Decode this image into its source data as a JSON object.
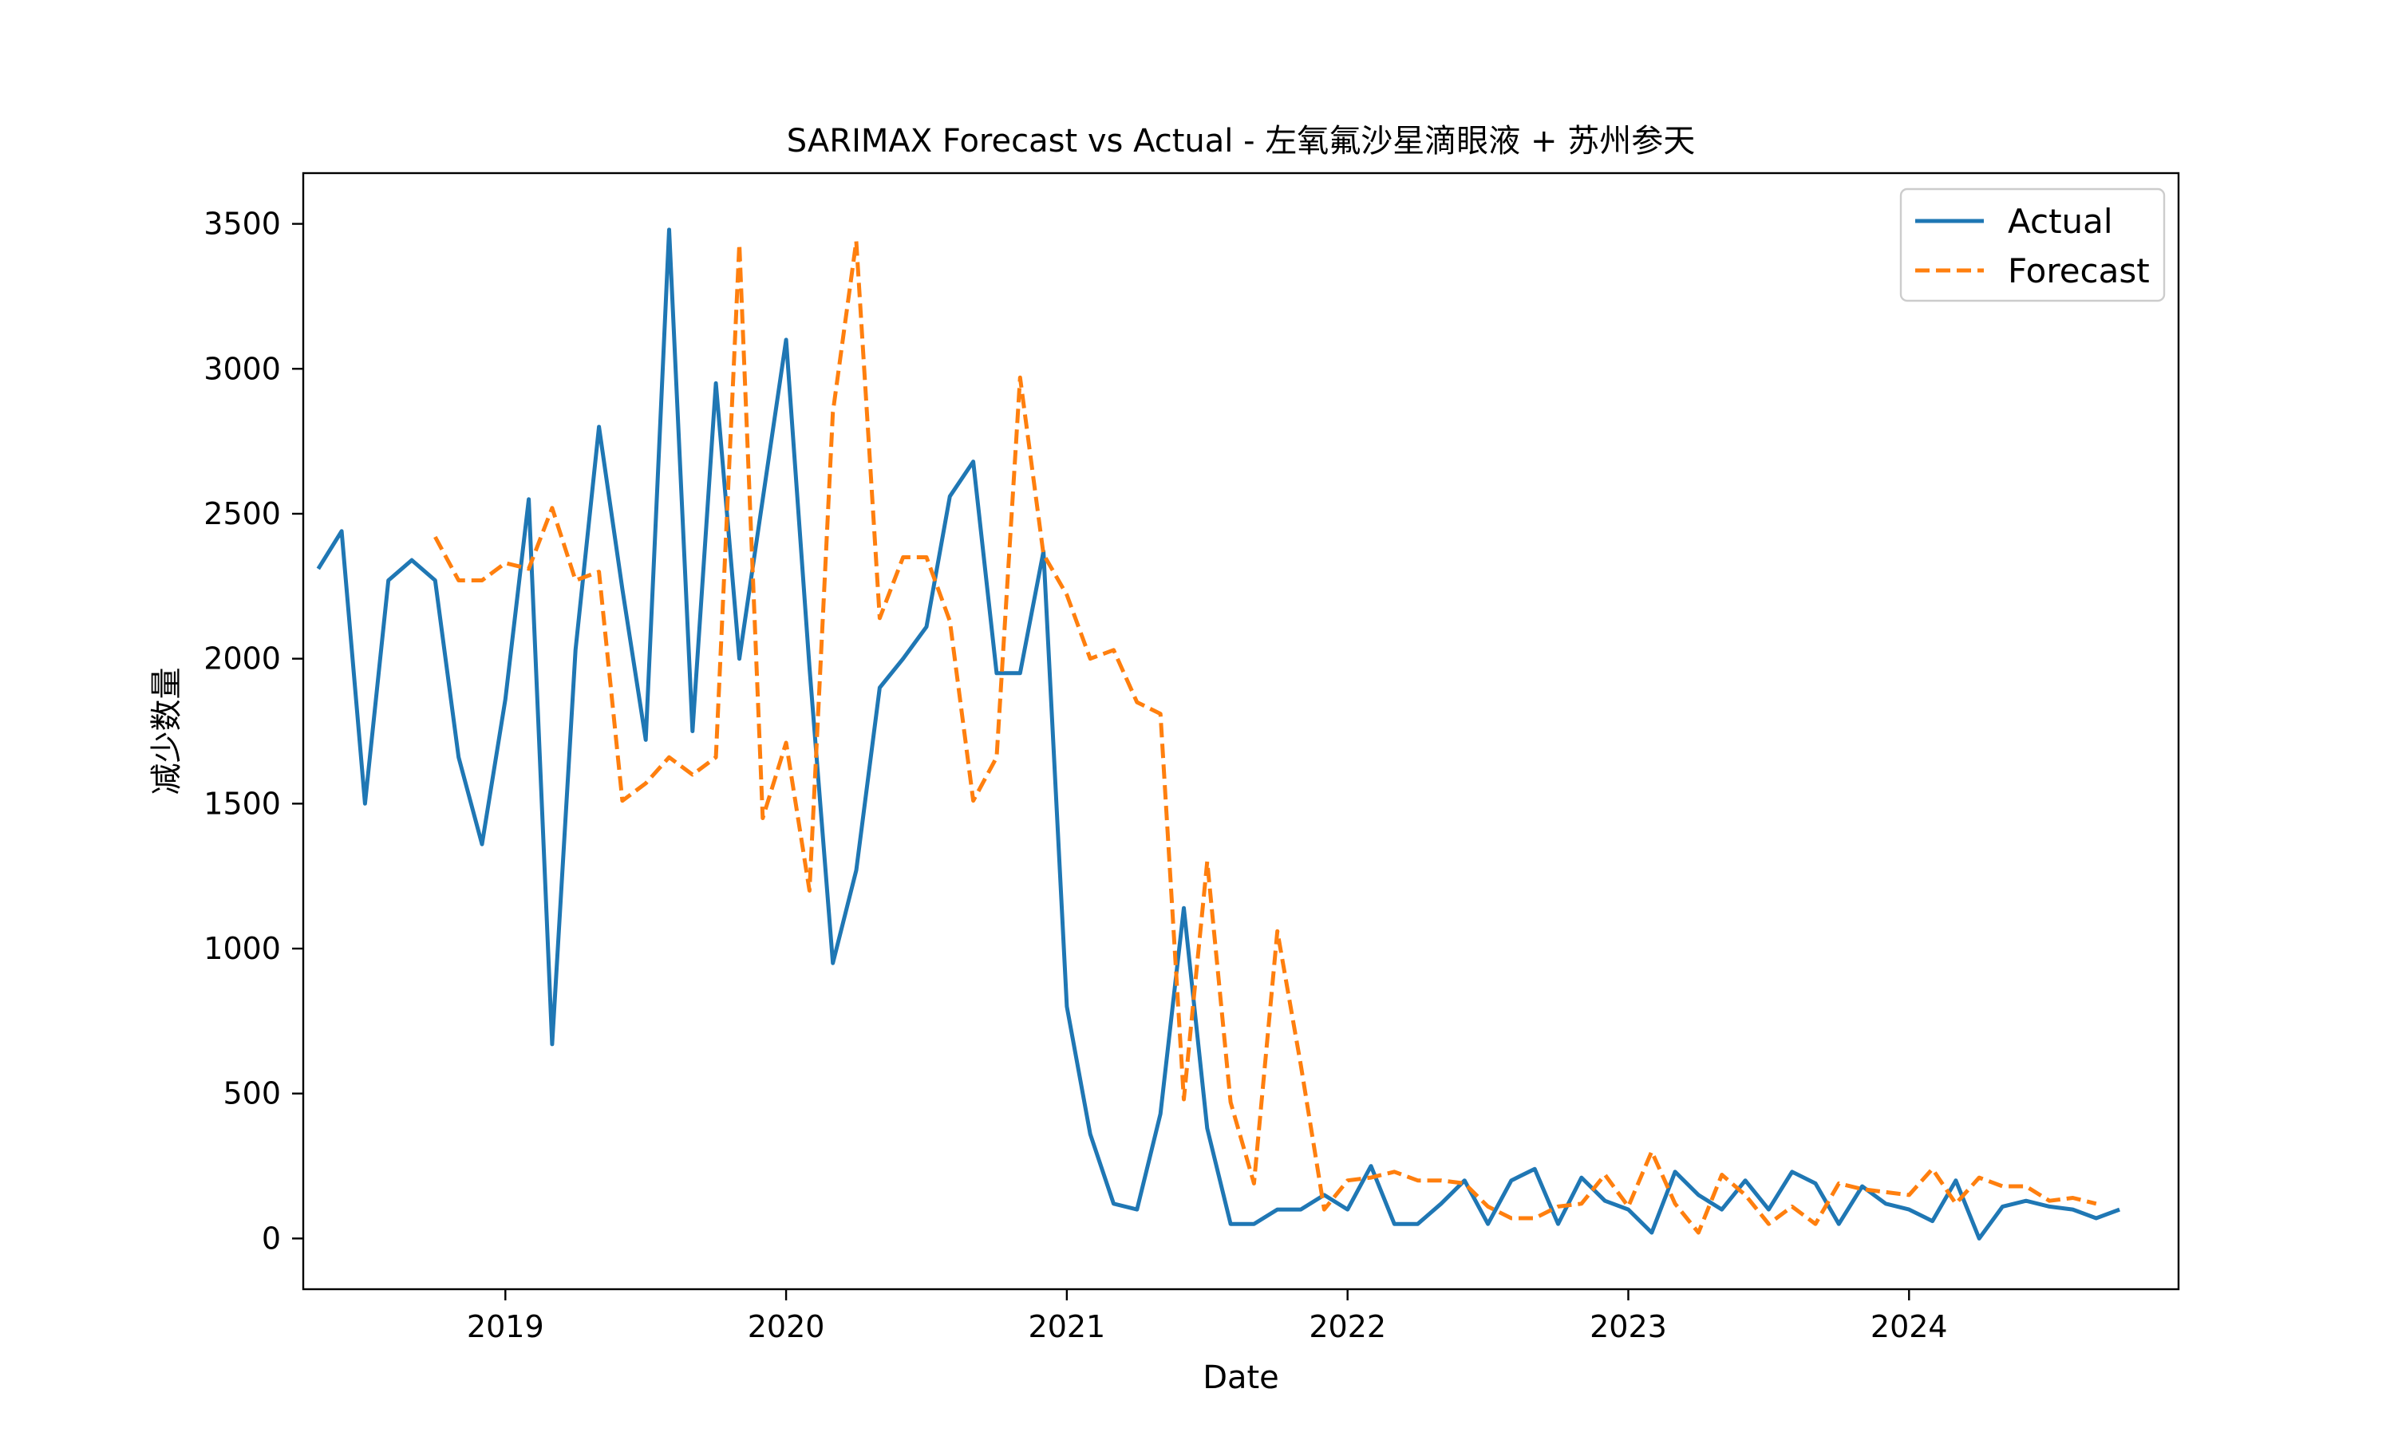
{
  "chart_data": {
    "type": "line",
    "title": "SARIMAX Forecast vs Actual - 左氧氟沙星滴眼液 + 苏州参天",
    "xlabel": "Date",
    "ylabel": "减少数量",
    "xlim": [
      2018.28,
      2024.96
    ],
    "ylim": [
      -175,
      3675
    ],
    "x_ticks": [
      {
        "value": 2019,
        "label": "2019"
      },
      {
        "value": 2020,
        "label": "2020"
      },
      {
        "value": 2021,
        "label": "2021"
      },
      {
        "value": 2022,
        "label": "2022"
      },
      {
        "value": 2023,
        "label": "2023"
      },
      {
        "value": 2024,
        "label": "2024"
      }
    ],
    "y_ticks": [
      {
        "value": 0,
        "label": "0"
      },
      {
        "value": 500,
        "label": "500"
      },
      {
        "value": 1000,
        "label": "1000"
      },
      {
        "value": 1500,
        "label": "1500"
      },
      {
        "value": 2000,
        "label": "2000"
      },
      {
        "value": 2500,
        "label": "2500"
      },
      {
        "value": 3000,
        "label": "3000"
      },
      {
        "value": 3500,
        "label": "3500"
      }
    ],
    "legend": {
      "position": "upper-right"
    },
    "series": [
      {
        "name": "Actual",
        "color": "#1f77b4",
        "style": "solid",
        "start": [
          2018,
          5
        ],
        "values": [
          2310,
          2440,
          1500,
          2270,
          2340,
          2270,
          1660,
          1360,
          1860,
          2550,
          670,
          2030,
          2800,
          2240,
          1720,
          3480,
          1750,
          2950,
          2000,
          2550,
          3100,
          1970,
          950,
          1270,
          1900,
          2000,
          2110,
          2560,
          2680,
          1950,
          1950,
          2370,
          800,
          360,
          120,
          100,
          430,
          1140,
          380,
          50,
          50,
          100,
          100,
          150,
          100,
          250,
          50,
          50,
          120,
          200,
          50,
          200,
          240,
          50,
          210,
          130,
          100,
          20,
          230,
          150,
          100,
          200,
          100,
          230,
          190,
          50,
          180,
          120,
          100,
          60,
          200,
          0,
          110,
          130,
          110,
          100,
          70,
          100
        ]
      },
      {
        "name": "Forecast",
        "color": "#ff7f0e",
        "style": "dashed",
        "start": [
          2018,
          10
        ],
        "values": [
          2420,
          2270,
          2270,
          2330,
          2310,
          2520,
          2270,
          2300,
          1510,
          1570,
          1660,
          1600,
          1660,
          3430,
          1450,
          1710,
          1200,
          2850,
          3440,
          2140,
          2350,
          2350,
          2130,
          1510,
          1660,
          2970,
          2360,
          2220,
          2000,
          2030,
          1850,
          1810,
          480,
          1300,
          470,
          190,
          1060,
          600,
          100,
          200,
          210,
          230,
          200,
          200,
          190,
          110,
          70,
          70,
          110,
          120,
          220,
          110,
          300,
          120,
          20,
          220,
          150,
          50,
          110,
          50,
          190,
          170,
          160,
          150,
          240,
          120,
          210,
          180,
          180,
          130,
          140,
          120
        ]
      }
    ]
  }
}
